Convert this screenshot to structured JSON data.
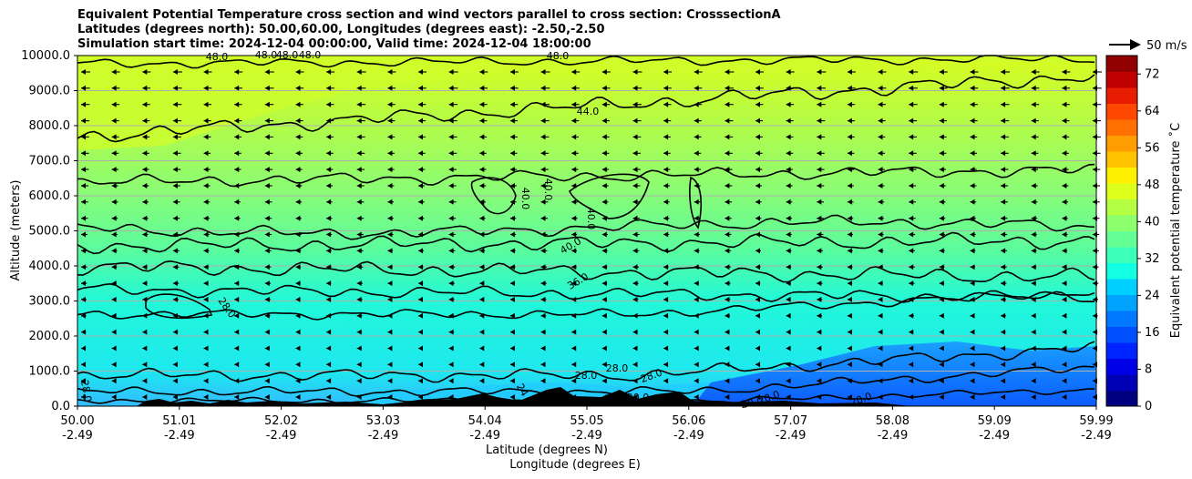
{
  "chart_data": {
    "type": "contour",
    "title_lines": [
      "Equivalent Potential Temperature cross section and wind vectors parallel to cross section: CrosssectionA",
      "Latitudes (degrees north): 50.00,60.00, Longitudes (degrees east): -2.50,-2.50",
      "Simulation start time: 2024-12-04 00:00:00, Valid time: 2024-12-04 18:00:00"
    ],
    "ylabel": "Altitude (meters)",
    "xlabel_lat": "Latitude (degrees N)",
    "xlabel_lon": "Longitude (degrees E)",
    "ylim": [
      0,
      10000
    ],
    "yticks": [
      "0.0",
      "1000.0",
      "2000.0",
      "3000.0",
      "4000.0",
      "5000.0",
      "6000.0",
      "7000.0",
      "8000.0",
      "9000.0",
      "10000.0"
    ],
    "xticks_lat": [
      "50.00",
      "51.01",
      "52.02",
      "53.03",
      "54.04",
      "55.05",
      "56.06",
      "57.07",
      "58.08",
      "59.09",
      "59.99"
    ],
    "xticks_lon": [
      "-2.49",
      "-2.49",
      "-2.49",
      "-2.49",
      "-2.49",
      "-2.49",
      "-2.49",
      "-2.49",
      "-2.49",
      "-2.49",
      "-2.49"
    ],
    "colorbar": {
      "label": "Equivalent potential temperature ˚C",
      "range": [
        0,
        76
      ],
      "ticks": [
        "0",
        "8",
        "16",
        "24",
        "32",
        "40",
        "48",
        "56",
        "64",
        "72"
      ]
    },
    "quiver_key": "50 m/s",
    "contour_labels": [
      "48.0",
      "48.0",
      "48.0",
      "48.0",
      "48.0",
      "44.0",
      "40.0",
      "40.0",
      "40.0",
      "40.0",
      "36.0",
      "28.0",
      "28.0",
      "28.0",
      "28.0",
      "28.0",
      "24",
      "20.0",
      "20.0",
      "20.0",
      "20.0"
    ]
  }
}
